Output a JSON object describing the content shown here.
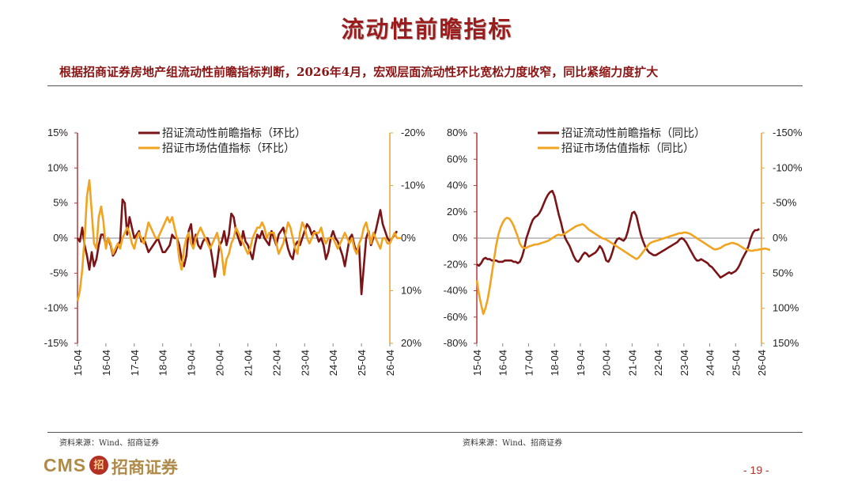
{
  "page": {
    "title": "流动性前瞻指标",
    "subtitle": "根据招商证券房地产组流动性前瞻指标判断，2026年4月，宏观层面流动性环比宽松力度收窄，同比紧缩力度扩大",
    "source_left": "资料来源：Wind、招商证券",
    "source_right": "资料来源：Wind、招商证券",
    "logo_text": "CMS",
    "logo_mark": "招",
    "logo_cn": "招商证券",
    "page_number": "- 19 -"
  },
  "colors": {
    "title": "#9b1c1c",
    "series1": "#7b1416",
    "series2": "#f0a421",
    "rule": "#555555"
  },
  "chart_data": [
    {
      "type": "line",
      "legend_position": "top",
      "grid": false,
      "x_tick_labels": [
        "15-04",
        "16-04",
        "17-04",
        "18-04",
        "19-04",
        "20-04",
        "21-04",
        "22-04",
        "23-04",
        "24-04",
        "25-04",
        "26-04"
      ],
      "x_range": [
        0,
        132
      ],
      "y_left": {
        "range": [
          15,
          -15
        ],
        "ticks": [
          -15,
          -10,
          -5,
          0,
          5,
          10,
          15
        ],
        "tick_labels": [
          "-15%",
          "-10%",
          "-5%",
          "0%",
          "5%",
          "10%",
          "15%"
        ]
      },
      "y_right": {
        "range": [
          -20,
          20
        ],
        "ticks": [
          -20,
          -10,
          0,
          10,
          20
        ],
        "tick_labels": [
          "-20%",
          "-10%",
          "0%",
          "10%",
          "20%"
        ]
      },
      "series": [
        {
          "name": "招证流动性前瞻指标（环比）",
          "axis": "left",
          "values": [
            0,
            -0.5,
            1.5,
            -1,
            -2.5,
            -4.5,
            -2,
            -4,
            -3,
            -1,
            0.5,
            0.5,
            -1,
            0,
            -1,
            -2.5,
            -2,
            -1,
            -0.5,
            5.5,
            5,
            0.5,
            3,
            1.5,
            0,
            0.5,
            1,
            -0.5,
            0,
            -1,
            -2,
            -1.5,
            -1,
            -0.5,
            0,
            -1,
            -2,
            -2,
            -1.5,
            -1,
            0.5,
            0,
            0,
            -1,
            -3,
            -4,
            -2.5,
            1,
            2,
            -1,
            0.5,
            -1,
            -1.5,
            -0.5,
            0,
            0,
            -1,
            -3,
            -5.5,
            -3.5,
            -1,
            -0.5,
            1,
            -1,
            0.5,
            3.5,
            3,
            1,
            0,
            -1,
            1,
            -0.5,
            -1,
            -2,
            -3,
            -1,
            0.5,
            0,
            1,
            0,
            -0.5,
            -1,
            1,
            0,
            -1,
            0.5,
            1,
            1.5,
            0,
            -1.5,
            -2.5,
            -3,
            -1,
            -0.5,
            -1,
            0,
            1,
            2,
            1.5,
            0.5,
            1,
            0.5,
            -0.5,
            0,
            -1,
            -3,
            -2,
            0,
            1,
            0,
            -0.5,
            -1.5,
            -2.5,
            -4,
            -2,
            0,
            0.5,
            -1,
            -2,
            -1,
            -8,
            -4,
            0,
            1,
            -1,
            0,
            1,
            2.5,
            4,
            2,
            1,
            0,
            -0.5,
            0,
            0.5,
            1
          ]
        },
        {
          "name": "招证市场估值指标（环比）",
          "axis": "right",
          "values": [
            12,
            10,
            6,
            0,
            -8,
            -11,
            -5,
            1,
            2,
            -4,
            -6,
            -3,
            2,
            0,
            1,
            3,
            2,
            1,
            2,
            0,
            -1,
            -2,
            -1,
            1,
            2,
            0,
            -1,
            0,
            1,
            -1,
            -3,
            -2,
            -1,
            0,
            0,
            -1,
            -2,
            -3,
            -4,
            -3,
            -4,
            -2,
            0,
            4,
            6,
            2,
            0,
            -1,
            1,
            2,
            0,
            -1,
            -2,
            -1,
            0,
            1,
            2,
            1,
            0,
            -1,
            1,
            3,
            7,
            4,
            3,
            1,
            0,
            -2,
            -1,
            0,
            1,
            2,
            3,
            2,
            0,
            -1,
            -2,
            -2,
            -3,
            -2,
            0,
            -1,
            -1,
            -1,
            1,
            3,
            2,
            1,
            -1,
            -3,
            -2,
            0,
            2,
            3,
            -1,
            -3,
            -2,
            0,
            1,
            0,
            -1,
            -1,
            -1,
            -2,
            0,
            1,
            0,
            0,
            0,
            1,
            2,
            1,
            0,
            -1,
            0,
            1,
            0,
            2,
            3,
            1,
            0,
            -2,
            -3,
            -1,
            1,
            -1,
            0,
            1,
            2,
            0,
            0,
            1,
            1,
            0,
            -1,
            0,
            0,
            0
          ]
        }
      ]
    },
    {
      "type": "line",
      "legend_position": "top",
      "grid": false,
      "x_tick_labels": [
        "15-04",
        "16-04",
        "17-04",
        "18-04",
        "19-04",
        "20-04",
        "21-04",
        "22-04",
        "23-04",
        "24-04",
        "25-04",
        "26-04"
      ],
      "x_range": [
        0,
        132
      ],
      "y_left": {
        "range": [
          80,
          -80
        ],
        "ticks": [
          -80,
          -60,
          -40,
          -20,
          0,
          20,
          40,
          60,
          80
        ],
        "tick_labels": [
          "-80%",
          "-60%",
          "-40%",
          "-20%",
          "0%",
          "20%",
          "40%",
          "60%",
          "80%"
        ]
      },
      "y_right": {
        "range": [
          -150,
          150
        ],
        "ticks": [
          -150,
          -100,
          -50,
          0,
          50,
          100,
          150
        ],
        "tick_labels": [
          "-150%",
          "-100%",
          "-50%",
          "0%",
          "50%",
          "100%",
          "150%"
        ]
      },
      "series": [
        {
          "name": "招证流动性前瞻指标（同比）",
          "axis": "left",
          "values": [
            -20,
            -21,
            -19,
            -16,
            -15,
            -16,
            -16,
            -17,
            -17,
            -17,
            -18,
            -18,
            -18,
            -17,
            -17,
            -17,
            -17,
            -18,
            -18,
            -19,
            -18,
            -14,
            -8,
            0,
            5,
            10,
            14,
            16,
            17,
            19,
            22,
            26,
            30,
            33,
            35,
            36,
            32,
            25,
            18,
            12,
            5,
            0,
            -3,
            -6,
            -10,
            -14,
            -17,
            -18,
            -16,
            -13,
            -11,
            -12,
            -14,
            -13,
            -12,
            -11,
            -9,
            -6,
            -8,
            -12,
            -17,
            -18,
            -15,
            -10,
            -4,
            -1,
            0,
            -1,
            -2,
            0,
            5,
            12,
            19,
            20,
            17,
            10,
            3,
            -2,
            -6,
            -9,
            -11,
            -12,
            -13,
            -13,
            -12,
            -11,
            -10,
            -9,
            -8,
            -7,
            -6,
            -5,
            -4,
            -3,
            -1,
            0,
            -1,
            -3,
            -6,
            -9,
            -12,
            -15,
            -17,
            -17,
            -16,
            -17,
            -18,
            -19,
            -21,
            -22,
            -24,
            -26,
            -28,
            -30,
            -29,
            -28,
            -27,
            -26,
            -27,
            -26,
            -25,
            -23,
            -20,
            -16,
            -13,
            -10,
            -6,
            0,
            4,
            6,
            6,
            7
          ]
        },
        {
          "name": "招证市场估值指标（同比）",
          "axis": "right",
          "values": [
            60,
            80,
            95,
            108,
            100,
            88,
            70,
            50,
            30,
            10,
            -5,
            -15,
            -22,
            -27,
            -29,
            -28,
            -24,
            -18,
            -10,
            -2,
            8,
            13,
            14,
            14,
            12,
            11,
            10,
            9,
            9,
            8,
            7,
            6,
            5,
            4,
            2,
            0,
            -2,
            -4,
            -5,
            -4,
            -5,
            -7,
            -9,
            -11,
            -13,
            -15,
            -17,
            -18,
            -19,
            -20,
            -18,
            -15,
            -12,
            -10,
            -8,
            -6,
            -4,
            -2,
            0,
            1,
            2,
            4,
            6,
            8,
            10,
            12,
            14,
            16,
            18,
            20,
            22,
            24,
            26,
            28,
            30,
            28,
            24,
            20,
            16,
            12,
            8,
            6,
            5,
            4,
            3,
            2,
            1,
            0,
            -1,
            -2,
            -3,
            -4,
            -5,
            -6,
            -7,
            -7,
            -8,
            -8,
            -7,
            -6,
            -4,
            -2,
            0,
            2,
            4,
            6,
            8,
            10,
            12,
            14,
            16,
            16,
            15,
            14,
            12,
            10,
            9,
            8,
            7,
            7,
            8,
            9,
            11,
            13,
            15,
            16,
            17,
            18,
            18,
            17,
            17,
            16,
            16,
            15,
            15,
            16,
            17
          ]
        }
      ]
    }
  ]
}
